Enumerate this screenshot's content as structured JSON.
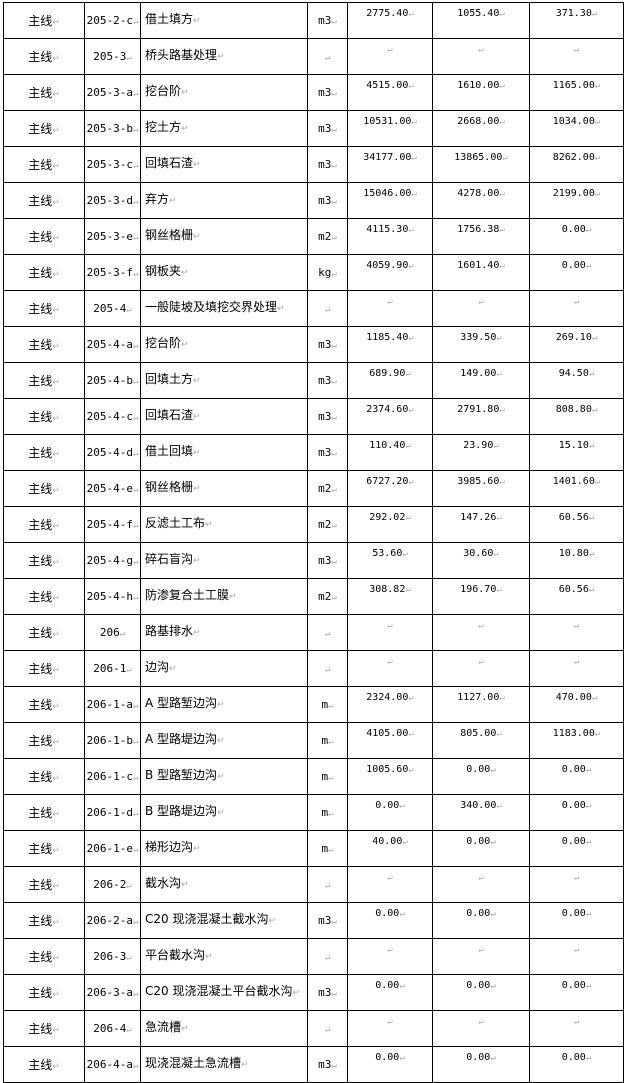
{
  "colors": {
    "border": "#000000",
    "paragraph_mark": "#aaaaaa"
  },
  "rows": [
    [
      "主线",
      "205-2-c",
      "借土填方",
      "m3",
      "2775.40",
      "1055.40",
      "371.30"
    ],
    [
      "主线",
      "205-3",
      "桥头路基处理",
      "",
      "",
      "",
      ""
    ],
    [
      "主线",
      "205-3-a",
      "挖台阶",
      "m3",
      "4515.00",
      "1610.00",
      "1165.00"
    ],
    [
      "主线",
      "205-3-b",
      "挖土方",
      "m3",
      "10531.00",
      "2668.00",
      "1034.00"
    ],
    [
      "主线",
      "205-3-c",
      "回填石渣",
      "m3",
      "34177.00",
      "13865.00",
      "8262.00"
    ],
    [
      "主线",
      "205-3-d",
      "弃方",
      "m3",
      "15046.00",
      "4278.00",
      "2199.00"
    ],
    [
      "主线",
      "205-3-e",
      "钢丝格栅",
      "m2",
      "4115.30",
      "1756.38",
      "0.00"
    ],
    [
      "主线",
      "205-3-f",
      "钢板夹",
      "kg",
      "4059.90",
      "1601.40",
      "0.00"
    ],
    [
      "主线",
      "205-4",
      "一般陡坡及填挖交界处理",
      "",
      "",
      "",
      ""
    ],
    [
      "主线",
      "205-4-a",
      "挖台阶",
      "m3",
      "1185.40",
      "339.50",
      "269.10"
    ],
    [
      "主线",
      "205-4-b",
      "回填土方",
      "m3",
      "689.90",
      "149.00",
      "94.50"
    ],
    [
      "主线",
      "205-4-c",
      "回填石渣",
      "m3",
      "2374.60",
      "2791.80",
      "808.80"
    ],
    [
      "主线",
      "205-4-d",
      "借土回填",
      "m3",
      "110.40",
      "23.90",
      "15.10"
    ],
    [
      "主线",
      "205-4-e",
      "钢丝格栅",
      "m2",
      "6727.20",
      "3985.60",
      "1401.60"
    ],
    [
      "主线",
      "205-4-f",
      "反滤土工布",
      "m2",
      "292.02",
      "147.26",
      "60.56"
    ],
    [
      "主线",
      "205-4-g",
      "碎石盲沟",
      "m3",
      "53.60",
      "30.60",
      "10.80"
    ],
    [
      "主线",
      "205-4-h",
      "防渗复合土工膜",
      "m2",
      "308.82",
      "196.70",
      "60.56"
    ],
    [
      "主线",
      "206",
      "路基排水",
      "",
      "",
      "",
      ""
    ],
    [
      "主线",
      "206-1",
      "边沟",
      "",
      "",
      "",
      ""
    ],
    [
      "主线",
      "206-1-a",
      "A 型路堑边沟",
      "m",
      "2324.00",
      "1127.00",
      "470.00"
    ],
    [
      "主线",
      "206-1-b",
      "A 型路堤边沟",
      "m",
      "4105.00",
      "805.00",
      "1183.00"
    ],
    [
      "主线",
      "206-1-c",
      "B 型路堑边沟",
      "m",
      "1005.60",
      "0.00",
      "0.00"
    ],
    [
      "主线",
      "206-1-d",
      "B 型路堤边沟",
      "m",
      "0.00",
      "340.00",
      "0.00"
    ],
    [
      "主线",
      "206-1-e",
      "梯形边沟",
      "m",
      "40.00",
      "0.00",
      "0.00"
    ],
    [
      "主线",
      "206-2",
      "截水沟",
      "",
      "",
      "",
      ""
    ],
    [
      "主线",
      "206-2-a",
      "C20 现浇混凝土截水沟",
      "m3",
      "0.00",
      "0.00",
      "0.00"
    ],
    [
      "主线",
      "206-3",
      "平台截水沟",
      "",
      "",
      "",
      ""
    ],
    [
      "主线",
      "206-3-a",
      "C20 现浇混凝土平台截水沟",
      "m3",
      "0.00",
      "0.00",
      "0.00"
    ],
    [
      "主线",
      "206-4",
      "急流槽",
      "",
      "",
      "",
      ""
    ],
    [
      "主线",
      "206-4-a",
      "现浇混凝土急流槽",
      "m3",
      "0.00",
      "0.00",
      "0.00"
    ]
  ]
}
